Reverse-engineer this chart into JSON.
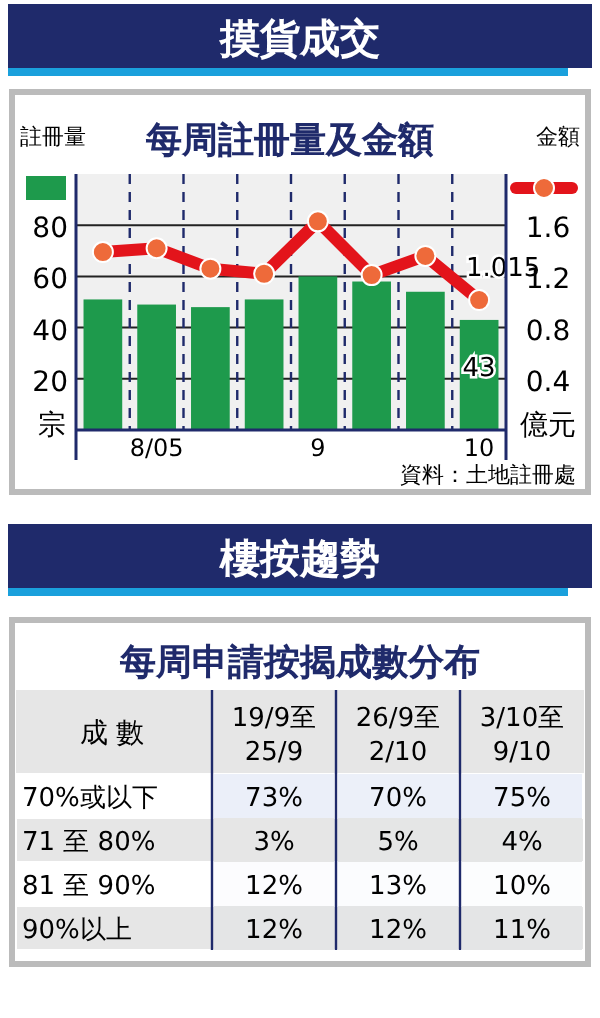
{
  "chart_data": [
    {
      "type": "bar",
      "title": "摸貨成交",
      "subtitle": "每周註冊量及金額",
      "ylabel": "註冊量",
      "y2label": "金額",
      "categories": [
        null,
        "8/05",
        null,
        null,
        "9",
        null,
        null,
        "10"
      ],
      "series": [
        {
          "type": "bar",
          "color": "#1e9a4c",
          "values": [
            51,
            49,
            48,
            51,
            60,
            58,
            54,
            43
          ],
          "value_labels": [
            null,
            null,
            null,
            null,
            null,
            null,
            null,
            "43"
          ]
        },
        {
          "type": "line",
          "axis": "y2",
          "color": "#e3141b",
          "marker": "circle",
          "values": [
            1.39,
            1.42,
            1.26,
            1.22,
            1.63,
            1.21,
            1.36,
            1.015
          ],
          "value_labels": [
            null,
            null,
            null,
            null,
            null,
            null,
            null,
            "1.015"
          ]
        }
      ],
      "ylim": [
        0,
        100
      ],
      "yticks": [
        20,
        40,
        60,
        80
      ],
      "y2lim": [
        0,
        2
      ],
      "y2ticks": [
        0.4,
        0.8,
        1.2,
        1.6
      ],
      "grid": true,
      "annotations": [
        "宗",
        "億元",
        "資料：土地註冊處"
      ]
    },
    {
      "type": "heatmap",
      "title": "樓按趨勢",
      "subtitle": "每周申請按揭成數分布",
      "xlabel": "成 數",
      "categories": [
        "19/9至\n25/9",
        "26/9至\n2/10",
        "3/10至\n9/10"
      ],
      "y_categories": [
        "70%或以下",
        "71 至 80%",
        "81 至 90%",
        "90%以上"
      ],
      "cells": [
        [
          73,
          70,
          75
        ],
        [
          3,
          5,
          4
        ],
        [
          12,
          13,
          10
        ],
        [
          12,
          12,
          11
        ]
      ],
      "cell_labels": [
        [
          "73%",
          "70%",
          "75%"
        ],
        [
          "3%",
          "5%",
          "4%"
        ],
        [
          "12%",
          "13%",
          "10%"
        ],
        [
          "12%",
          "12%",
          "11%"
        ]
      ]
    }
  ]
}
